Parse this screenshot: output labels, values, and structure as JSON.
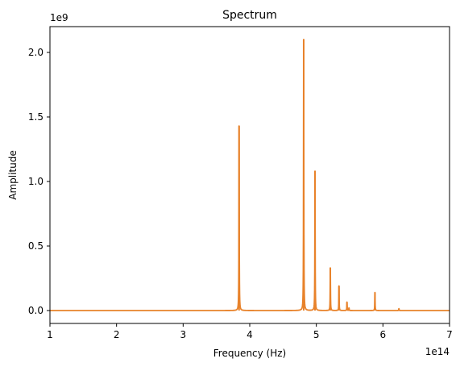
{
  "chart_data": {
    "type": "line",
    "title": "Spectrum",
    "xlabel": "Frequency (Hz)",
    "ylabel": "Amplitude",
    "x_multiplier": "1e14",
    "y_multiplier": "1e9",
    "xlim": [
      1,
      7
    ],
    "ylim": [
      -0.1,
      2.2
    ],
    "x_ticks": [
      {
        "value": 1,
        "label": "1"
      },
      {
        "value": 2,
        "label": "2"
      },
      {
        "value": 3,
        "label": "3"
      },
      {
        "value": 4,
        "label": "4"
      },
      {
        "value": 5,
        "label": "5"
      },
      {
        "value": 6,
        "label": "6"
      },
      {
        "value": 7,
        "label": "7"
      }
    ],
    "y_ticks": [
      {
        "value": 0.0,
        "label": "0.0"
      },
      {
        "value": 0.5,
        "label": "0.5"
      },
      {
        "value": 1.0,
        "label": "1.0"
      },
      {
        "value": 1.5,
        "label": "1.5"
      },
      {
        "value": 2.0,
        "label": "2.0"
      }
    ],
    "grid": false,
    "series": [
      {
        "color": "#e8822a",
        "peaks": [
          {
            "x": 3.84,
            "y": 1.43
          },
          {
            "x": 4.81,
            "y": 2.1
          },
          {
            "x": 4.98,
            "y": 1.08
          },
          {
            "x": 5.21,
            "y": 0.33
          },
          {
            "x": 5.34,
            "y": 0.19
          },
          {
            "x": 5.46,
            "y": 0.065
          },
          {
            "x": 5.49,
            "y": 0.02
          },
          {
            "x": 5.88,
            "y": 0.14
          },
          {
            "x": 6.24,
            "y": 0.015
          }
        ],
        "baseline": 0.0
      }
    ]
  }
}
